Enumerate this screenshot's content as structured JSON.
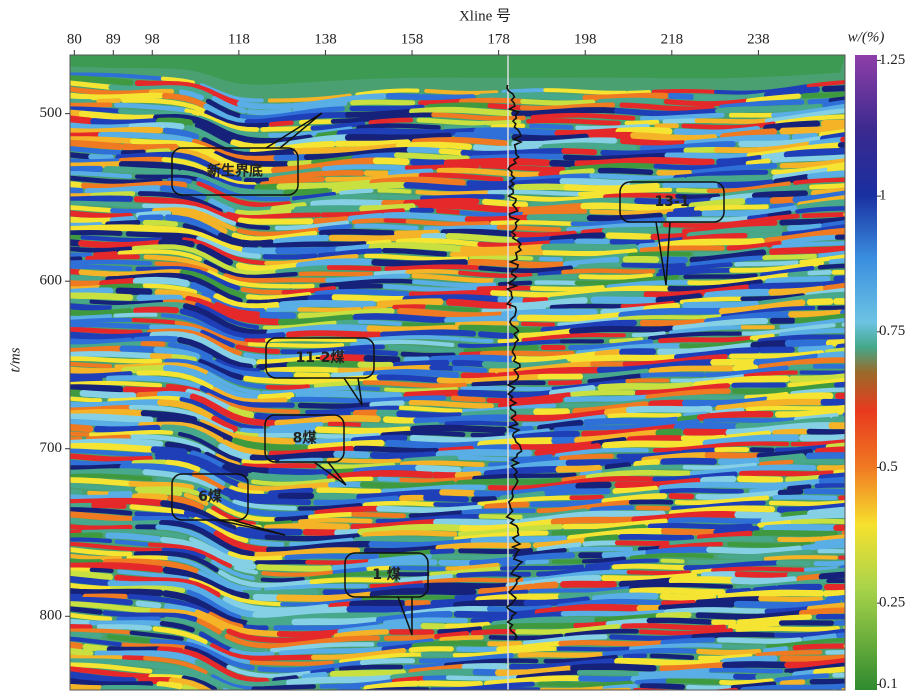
{
  "chart_data": {
    "type": "seismic-section",
    "x_label": "Xline 号",
    "y_label": "t/ms",
    "colorbar_label": "w/(%)",
    "xlim": [
      79,
      258
    ],
    "xticks": [
      80,
      89,
      98,
      118,
      138,
      158,
      178,
      198,
      218,
      238
    ],
    "ylim": [
      465,
      844
    ],
    "yticks": [
      500,
      600,
      700,
      800
    ],
    "clim": [
      0.09,
      1.26
    ],
    "cticks": [
      0.1,
      0.25,
      0.5,
      0.75,
      1,
      1.25
    ],
    "annotations": [
      "新生界底",
      "13-1",
      "11-2煤",
      "8煤",
      "6煤",
      "1 煤"
    ]
  }
}
